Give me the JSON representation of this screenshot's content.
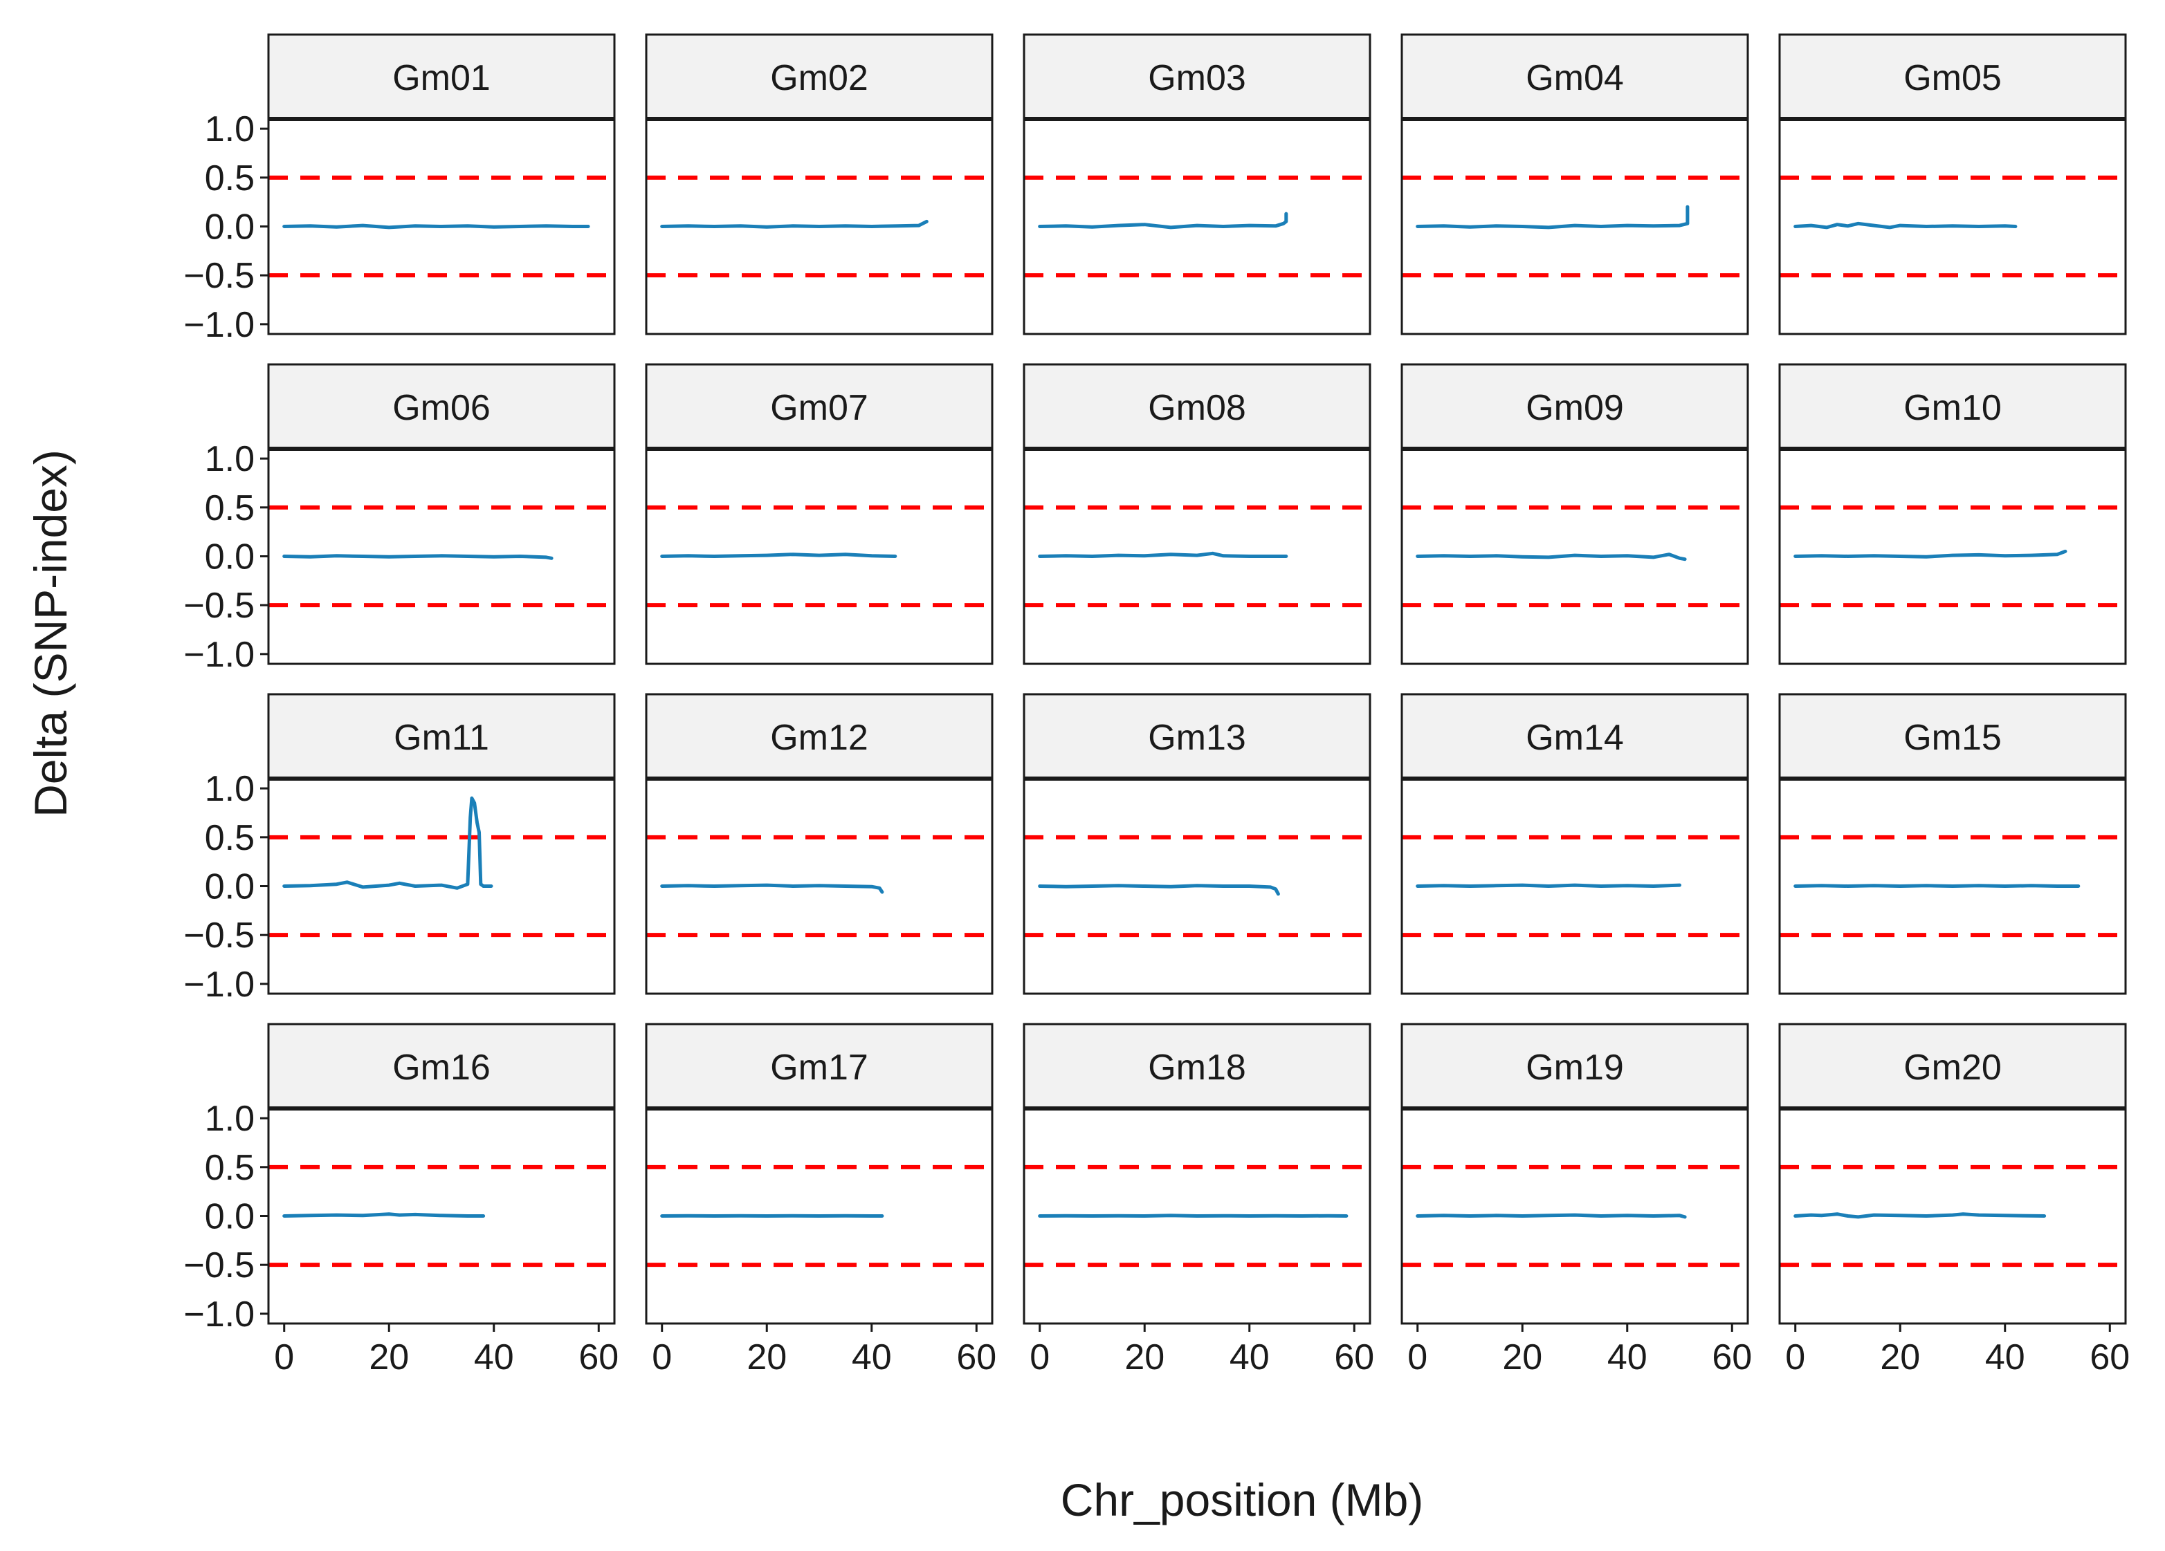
{
  "chart_data": {
    "type": "line",
    "layout": "facet-grid",
    "nrow": 4,
    "ncol": 5,
    "xlabel": "Chr_position (Mb)",
    "ylabel": "Delta (SNP-index)",
    "xlim": [
      -3,
      63
    ],
    "ylim": [
      -1.1,
      1.1
    ],
    "x_ticks": [
      0,
      20,
      40,
      60
    ],
    "x_tick_labels": [
      "0",
      "20",
      "40",
      "60"
    ],
    "y_ticks": [
      1.0,
      0.5,
      0.0,
      -0.5,
      -1.0
    ],
    "y_tick_labels": [
      "1.0",
      "0.5",
      "0.0",
      "−0.5",
      "−1.0"
    ],
    "thresholds": [
      0.5,
      -0.5
    ],
    "threshold_color": "#ff0000",
    "line_color": "#1a7fb8",
    "strip_fill": "#f2f2f2",
    "panels": [
      {
        "label": "Gm01",
        "x": [
          0,
          5,
          10,
          15,
          20,
          25,
          30,
          35,
          40,
          45,
          50,
          55,
          58
        ],
        "y": [
          0,
          0.005,
          -0.005,
          0.01,
          -0.01,
          0.005,
          0,
          0.005,
          -0.005,
          0,
          0.005,
          0,
          0
        ]
      },
      {
        "label": "Gm02",
        "x": [
          0,
          5,
          10,
          15,
          20,
          25,
          30,
          35,
          40,
          45,
          49,
          50.5
        ],
        "y": [
          0,
          0.005,
          0,
          0.005,
          -0.005,
          0.005,
          0,
          0.005,
          0,
          0.005,
          0.01,
          0.05
        ]
      },
      {
        "label": "Gm03",
        "x": [
          0,
          5,
          10,
          15,
          20,
          25,
          30,
          35,
          40,
          45,
          46.5,
          47,
          47
        ],
        "y": [
          0,
          0.005,
          -0.005,
          0.01,
          0.02,
          -0.01,
          0.01,
          0,
          0.01,
          0.005,
          0.03,
          0.05,
          0.13
        ]
      },
      {
        "label": "Gm04",
        "x": [
          0,
          5,
          10,
          15,
          20,
          25,
          30,
          35,
          40,
          45,
          50,
          51.5,
          51.5
        ],
        "y": [
          0,
          0.005,
          -0.005,
          0.005,
          0,
          -0.01,
          0.01,
          0,
          0.01,
          0.005,
          0.01,
          0.03,
          0.2
        ]
      },
      {
        "label": "Gm05",
        "x": [
          0,
          3,
          6,
          8,
          10,
          12,
          15,
          18,
          20,
          25,
          30,
          35,
          40,
          42
        ],
        "y": [
          0,
          0.01,
          -0.01,
          0.02,
          0.005,
          0.03,
          0.01,
          -0.01,
          0.01,
          0,
          0.005,
          0,
          0.005,
          0
        ]
      },
      {
        "label": "Gm06",
        "x": [
          0,
          5,
          10,
          15,
          20,
          25,
          30,
          35,
          40,
          45,
          50,
          51
        ],
        "y": [
          0,
          -0.005,
          0.005,
          0,
          -0.005,
          0,
          0.005,
          0,
          -0.005,
          0,
          -0.01,
          -0.02
        ]
      },
      {
        "label": "Gm07",
        "x": [
          0,
          5,
          10,
          15,
          20,
          25,
          30,
          35,
          40,
          44.5
        ],
        "y": [
          0,
          0.005,
          0,
          0.005,
          0.01,
          0.02,
          0.01,
          0.02,
          0.005,
          0
        ]
      },
      {
        "label": "Gm08",
        "x": [
          0,
          5,
          10,
          15,
          20,
          25,
          30,
          33,
          35,
          40,
          47
        ],
        "y": [
          0,
          0.005,
          0,
          0.01,
          0.005,
          0.02,
          0.01,
          0.03,
          0.005,
          0,
          0
        ]
      },
      {
        "label": "Gm09",
        "x": [
          0,
          5,
          10,
          15,
          20,
          25,
          30,
          35,
          40,
          45,
          48,
          50,
          51
        ],
        "y": [
          0,
          0.005,
          0,
          0.005,
          -0.005,
          -0.01,
          0.01,
          0,
          0.005,
          -0.01,
          0.02,
          -0.02,
          -0.03
        ]
      },
      {
        "label": "Gm10",
        "x": [
          0,
          5,
          10,
          15,
          20,
          25,
          30,
          35,
          40,
          45,
          50,
          51.5
        ],
        "y": [
          0,
          0.005,
          0,
          0.005,
          0,
          -0.005,
          0.01,
          0.015,
          0.005,
          0.01,
          0.02,
          0.05
        ]
      },
      {
        "label": "Gm11",
        "x": [
          0,
          5,
          10,
          12,
          15,
          20,
          22,
          25,
          30,
          33,
          35,
          35.5,
          35.8,
          36.3,
          36.8,
          37.2,
          37.5,
          38,
          39.5
        ],
        "y": [
          0,
          0.005,
          0.02,
          0.04,
          -0.01,
          0.01,
          0.03,
          0,
          0.01,
          -0.02,
          0.02,
          0.7,
          0.9,
          0.85,
          0.65,
          0.55,
          0.02,
          0,
          0
        ]
      },
      {
        "label": "Gm12",
        "x": [
          0,
          5,
          10,
          15,
          20,
          25,
          30,
          35,
          40,
          41.5,
          42
        ],
        "y": [
          0,
          0.005,
          0,
          0.005,
          0.01,
          0,
          0.005,
          0,
          -0.005,
          -0.02,
          -0.06
        ]
      },
      {
        "label": "Gm13",
        "x": [
          0,
          5,
          10,
          15,
          20,
          25,
          30,
          35,
          40,
          44,
          45,
          45.5
        ],
        "y": [
          0,
          -0.005,
          0,
          0.005,
          0,
          -0.005,
          0.005,
          0,
          0,
          -0.01,
          -0.03,
          -0.08
        ]
      },
      {
        "label": "Gm14",
        "x": [
          0,
          5,
          10,
          15,
          20,
          25,
          30,
          35,
          40,
          45,
          50
        ],
        "y": [
          0,
          0.005,
          0,
          0.005,
          0.01,
          0,
          0.01,
          0,
          0.005,
          0,
          0.01
        ]
      },
      {
        "label": "Gm15",
        "x": [
          0,
          5,
          10,
          15,
          20,
          25,
          30,
          35,
          40,
          45,
          50,
          54
        ],
        "y": [
          0,
          0.005,
          0,
          0.005,
          0,
          0.005,
          0,
          0.005,
          0,
          0.005,
          0,
          0
        ]
      },
      {
        "label": "Gm16",
        "x": [
          0,
          5,
          10,
          15,
          20,
          22,
          25,
          30,
          35,
          38
        ],
        "y": [
          0,
          0.005,
          0.01,
          0.005,
          0.02,
          0.01,
          0.015,
          0.005,
          0,
          0
        ]
      },
      {
        "label": "Gm17",
        "x": [
          0,
          5,
          10,
          15,
          20,
          25,
          30,
          35,
          40,
          42
        ],
        "y": [
          0,
          0.002,
          0,
          0.002,
          0,
          0.002,
          0,
          0.002,
          0,
          0
        ]
      },
      {
        "label": "Gm18",
        "x": [
          0,
          5,
          10,
          15,
          20,
          25,
          30,
          35,
          40,
          45,
          50,
          55,
          58.5
        ],
        "y": [
          0,
          0.002,
          0,
          0.002,
          0,
          0.005,
          0,
          0.002,
          0,
          0.002,
          0,
          0.002,
          0
        ]
      },
      {
        "label": "Gm19",
        "x": [
          0,
          5,
          10,
          15,
          20,
          25,
          30,
          35,
          40,
          45,
          50,
          51
        ],
        "y": [
          0,
          0.005,
          0,
          0.005,
          0,
          0.005,
          0.01,
          0,
          0.005,
          0,
          0.005,
          -0.01
        ]
      },
      {
        "label": "Gm20",
        "x": [
          0,
          3,
          5,
          8,
          10,
          12,
          15,
          20,
          25,
          30,
          32,
          35,
          40,
          47.5
        ],
        "y": [
          0,
          0.01,
          0.005,
          0.02,
          0,
          -0.01,
          0.01,
          0.005,
          0,
          0.01,
          0.02,
          0.01,
          0.005,
          0
        ]
      }
    ]
  }
}
